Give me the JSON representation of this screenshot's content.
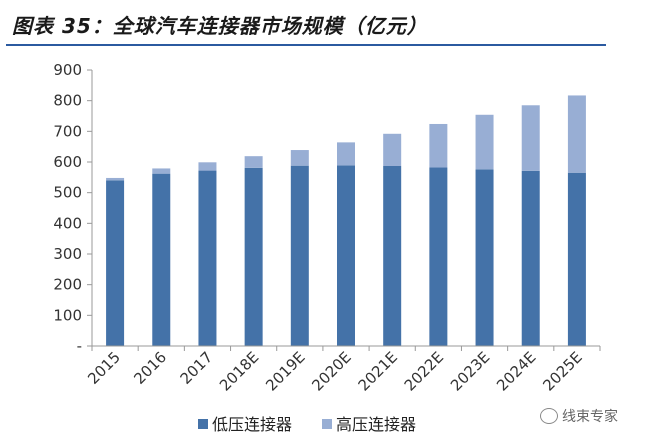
{
  "header": {
    "title": "图表 35：全球汽车连接器市场规模（亿元）"
  },
  "watermark": {
    "text": "线束专家",
    "icon": "wechat-icon"
  },
  "colors": {
    "low": "#4472a8",
    "high": "#98aed4",
    "axis": "#999999",
    "rule": "#2b5aa0"
  },
  "chart_data": {
    "type": "bar",
    "stacked": true,
    "categories": [
      "2015",
      "2016",
      "2017",
      "2018E",
      "2019E",
      "2020E",
      "2021E",
      "2022E",
      "2023E",
      "2024E",
      "2025E"
    ],
    "series": [
      {
        "name": "低压连接器",
        "values": [
          540,
          562,
          572,
          581,
          588,
          589,
          587,
          582,
          576,
          571,
          565
        ]
      },
      {
        "name": "高压连接器",
        "values": [
          8,
          17,
          27,
          38,
          51,
          75,
          105,
          142,
          178,
          214,
          252
        ]
      }
    ],
    "y_ticks": [
      "-",
      "100",
      "200",
      "300",
      "400",
      "500",
      "600",
      "700",
      "800",
      "900"
    ],
    "ylim": [
      0,
      900
    ],
    "grid": false,
    "legend": "bottom"
  }
}
